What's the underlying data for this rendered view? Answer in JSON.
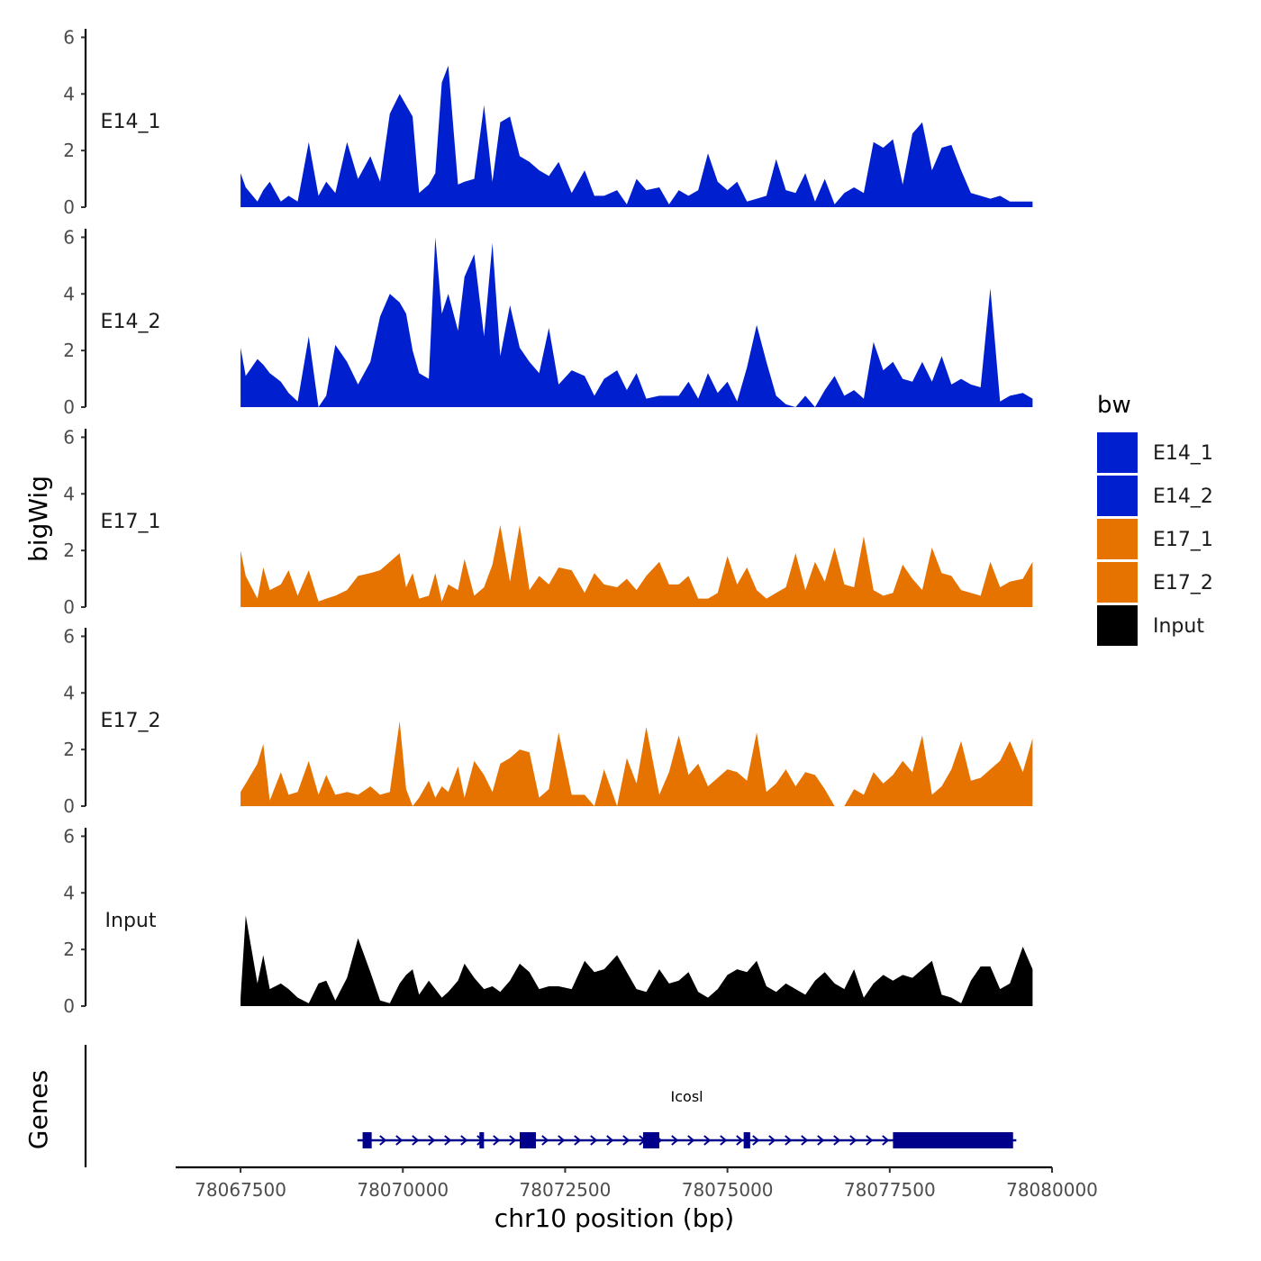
{
  "chart_data": {
    "type": "area",
    "xlabel": "chr10 position (bp)",
    "ylabel": "bigWig",
    "genes_label": "Genes",
    "xlim": [
      78066500,
      78080000
    ],
    "xticks": [
      78067500,
      78070000,
      78072500,
      78075000,
      78077500,
      78080000
    ],
    "xtick_labels": [
      "78067500",
      "78070000",
      "78072500",
      "78075000",
      "78077500",
      "78080000"
    ],
    "ylim": [
      0,
      6.3
    ],
    "yticks": [
      0,
      2,
      4,
      6
    ],
    "ytick_labels": [
      "0",
      "2",
      "4",
      "6"
    ],
    "x": [
      78067500,
      78067580,
      78067760,
      78067850,
      78067950,
      78068120,
      78068240,
      78068380,
      78068550,
      78068700,
      78068820,
      78068960,
      78069140,
      78069310,
      78069500,
      78069650,
      78069800,
      78069950,
      78070050,
      78070150,
      78070250,
      78070400,
      78070500,
      78070600,
      78070700,
      78070850,
      78070950,
      78071100,
      78071250,
      78071380,
      78071500,
      78071650,
      78071800,
      78071950,
      78072100,
      78072250,
      78072400,
      78072600,
      78072800,
      78072950,
      78073100,
      78073300,
      78073450,
      78073600,
      78073750,
      78073950,
      78074100,
      78074250,
      78074400,
      78074550,
      78074700,
      78074850,
      78075000,
      78075150,
      78075300,
      78075450,
      78075600,
      78075750,
      78075900,
      78076050,
      78076200,
      78076350,
      78076500,
      78076650,
      78076800,
      78076950,
      78077100,
      78077250,
      78077400,
      78077550,
      78077700,
      78077850,
      78078000,
      78078150,
      78078300,
      78078450,
      78078600,
      78078750,
      78078900,
      78079050,
      78079200,
      78079350,
      78079550,
      78079700
    ],
    "legend": {
      "title": "bw",
      "position": "right",
      "entries": [
        "E14_1",
        "E14_2",
        "E17_1",
        "E17_2",
        "Input"
      ]
    },
    "series": [
      {
        "name": "E14_1",
        "color": "#0020D0",
        "values": [
          1.2,
          0.7,
          0.2,
          0.6,
          0.9,
          0.2,
          0.4,
          0.2,
          2.3,
          0.4,
          0.9,
          0.5,
          2.3,
          1.0,
          1.8,
          0.9,
          3.3,
          4.0,
          3.6,
          3.2,
          0.5,
          0.8,
          1.2,
          4.4,
          5.0,
          0.8,
          0.9,
          1.0,
          3.6,
          0.9,
          3.0,
          3.2,
          1.8,
          1.6,
          1.3,
          1.1,
          1.6,
          0.5,
          1.3,
          0.4,
          0.4,
          0.6,
          0.1,
          1.0,
          0.6,
          0.7,
          0.1,
          0.6,
          0.4,
          0.6,
          1.9,
          0.9,
          0.6,
          0.9,
          0.2,
          0.3,
          0.4,
          1.7,
          0.6,
          0.5,
          1.2,
          0.2,
          1.0,
          0.1,
          0.5,
          0.7,
          0.5,
          2.3,
          2.1,
          2.4,
          0.8,
          2.6,
          3.0,
          1.3,
          2.1,
          2.2,
          1.3,
          0.5,
          0.4,
          0.3,
          0.4,
          0.2,
          0.2,
          0.2
        ]
      },
      {
        "name": "E14_2",
        "color": "#0020D0",
        "values": [
          2.1,
          1.1,
          1.7,
          1.5,
          1.2,
          0.9,
          0.5,
          0.2,
          2.5,
          0.0,
          0.4,
          2.2,
          1.6,
          0.8,
          1.6,
          3.2,
          4.0,
          3.7,
          3.3,
          2.0,
          1.2,
          1.0,
          6.0,
          3.3,
          4.0,
          2.7,
          4.6,
          5.4,
          2.5,
          5.8,
          1.8,
          3.6,
          2.1,
          1.6,
          1.2,
          2.8,
          0.8,
          1.3,
          1.1,
          0.4,
          1.0,
          1.3,
          0.6,
          1.2,
          0.3,
          0.4,
          0.4,
          0.4,
          0.9,
          0.3,
          1.2,
          0.5,
          0.9,
          0.2,
          1.4,
          2.9,
          1.6,
          0.4,
          0.1,
          0.0,
          0.4,
          0.0,
          0.6,
          1.1,
          0.4,
          0.6,
          0.3,
          2.3,
          1.3,
          1.6,
          1.0,
          0.9,
          1.6,
          0.9,
          1.8,
          0.8,
          1.0,
          0.8,
          0.7,
          4.2,
          0.2,
          0.4,
          0.5,
          0.3
        ]
      },
      {
        "name": "E17_1",
        "color": "#E67300",
        "values": [
          2.0,
          1.1,
          0.3,
          1.4,
          0.6,
          0.8,
          1.3,
          0.4,
          1.3,
          0.2,
          0.3,
          0.4,
          0.6,
          1.1,
          1.2,
          1.3,
          1.6,
          1.9,
          0.7,
          1.2,
          0.3,
          0.4,
          1.2,
          0.2,
          0.8,
          0.6,
          1.7,
          0.4,
          0.7,
          1.5,
          2.9,
          0.9,
          2.9,
          0.6,
          1.1,
          0.8,
          1.4,
          1.3,
          0.5,
          1.2,
          0.8,
          0.7,
          1.0,
          0.6,
          1.1,
          1.6,
          0.8,
          0.8,
          1.1,
          0.3,
          0.3,
          0.5,
          1.8,
          0.8,
          1.4,
          0.6,
          0.3,
          0.5,
          0.7,
          1.9,
          0.6,
          1.6,
          0.9,
          2.1,
          0.8,
          0.7,
          2.5,
          0.6,
          0.4,
          0.5,
          1.5,
          1.0,
          0.6,
          2.1,
          1.2,
          1.1,
          0.6,
          0.5,
          0.4,
          1.6,
          0.7,
          0.9,
          1.0,
          1.6
        ]
      },
      {
        "name": "E17_2",
        "color": "#E67300",
        "values": [
          0.5,
          0.8,
          1.5,
          2.2,
          0.2,
          1.2,
          0.4,
          0.5,
          1.6,
          0.4,
          1.1,
          0.4,
          0.5,
          0.4,
          0.7,
          0.4,
          0.5,
          3.0,
          0.6,
          0.0,
          0.3,
          0.9,
          0.3,
          0.7,
          0.5,
          1.4,
          0.3,
          1.6,
          1.1,
          0.5,
          1.5,
          1.7,
          2.0,
          1.9,
          0.3,
          0.6,
          2.6,
          0.4,
          0.4,
          0.0,
          1.3,
          0.0,
          1.7,
          0.8,
          2.8,
          0.4,
          1.2,
          2.5,
          1.1,
          1.5,
          0.7,
          1.0,
          1.3,
          1.2,
          0.9,
          2.6,
          0.5,
          0.8,
          1.3,
          0.7,
          1.2,
          1.1,
          0.6,
          0.0,
          0.0,
          0.6,
          0.4,
          1.2,
          0.8,
          1.1,
          1.6,
          1.2,
          2.5,
          0.4,
          0.7,
          1.3,
          2.3,
          0.9,
          1.0,
          1.3,
          1.6,
          2.3,
          1.2,
          2.4
        ]
      },
      {
        "name": "Input",
        "color": "#000000",
        "values": [
          0.3,
          3.2,
          0.8,
          1.8,
          0.6,
          0.8,
          0.6,
          0.3,
          0.1,
          0.8,
          0.9,
          0.2,
          1.0,
          2.4,
          1.2,
          0.2,
          0.1,
          0.8,
          1.1,
          1.3,
          0.4,
          0.9,
          0.6,
          0.3,
          0.5,
          0.9,
          1.5,
          1.0,
          0.6,
          0.7,
          0.5,
          0.9,
          1.5,
          1.2,
          0.6,
          0.7,
          0.7,
          0.6,
          1.6,
          1.2,
          1.3,
          1.8,
          1.2,
          0.6,
          0.5,
          1.3,
          0.8,
          0.9,
          1.2,
          0.5,
          0.3,
          0.6,
          1.1,
          1.3,
          1.2,
          1.6,
          0.7,
          0.5,
          0.8,
          0.6,
          0.4,
          0.9,
          1.2,
          0.8,
          0.6,
          1.3,
          0.3,
          0.8,
          1.1,
          0.9,
          1.1,
          1.0,
          1.3,
          1.6,
          0.4,
          0.3,
          0.1,
          0.9,
          1.4,
          1.4,
          0.6,
          0.8,
          2.1,
          1.3
        ]
      }
    ],
    "gene": {
      "name": "Icosl",
      "color": "#00008B",
      "strand": "+",
      "start": 78069300,
      "end": 78079450,
      "exons": [
        [
          78069380,
          78069520
        ],
        [
          78071180,
          78071250
        ],
        [
          78071800,
          78072050
        ],
        [
          78073700,
          78073950
        ],
        [
          78075250,
          78075350
        ],
        [
          78077550,
          78079400
        ]
      ]
    }
  }
}
